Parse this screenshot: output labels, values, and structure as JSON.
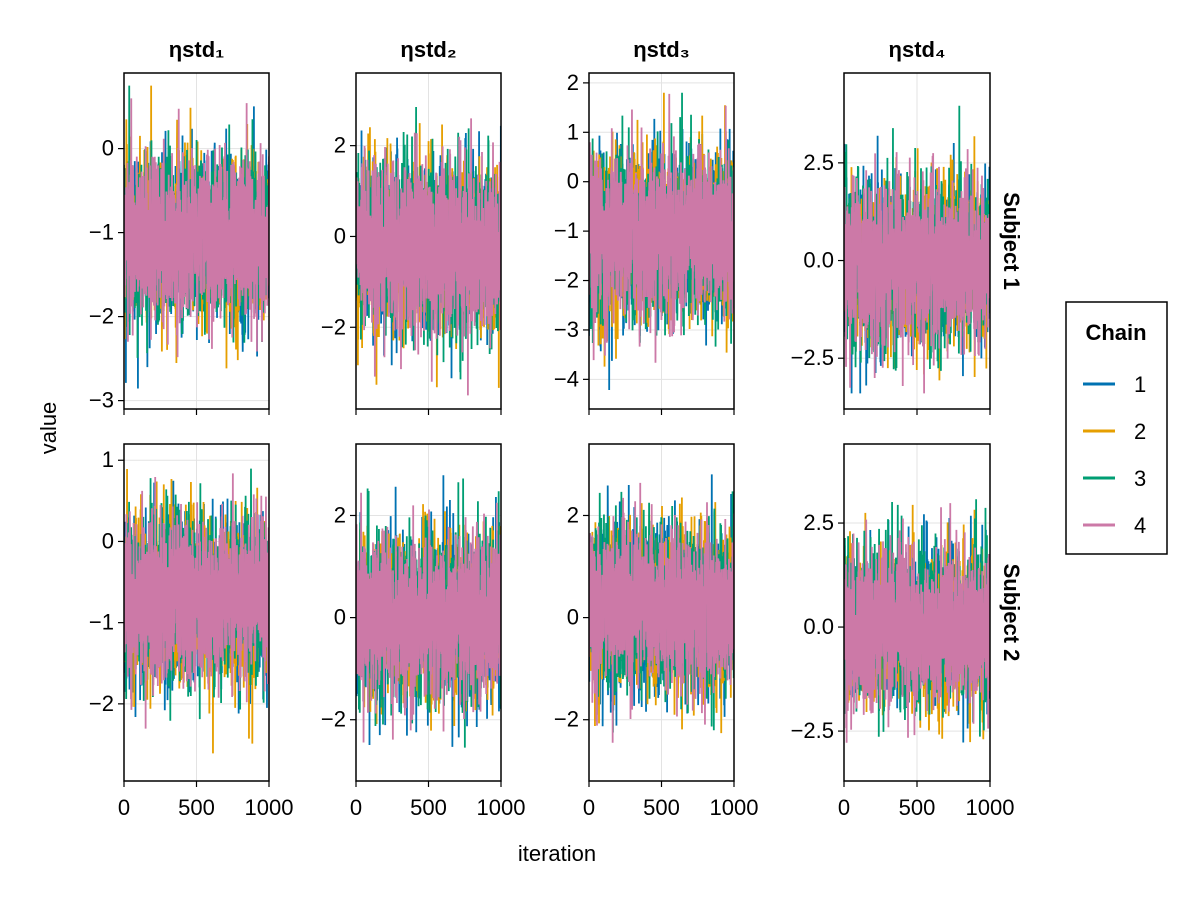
{
  "chart_data": {
    "type": "line",
    "xlabel": "iteration",
    "ylabel": "value",
    "columns": [
      "ηstd₁",
      "ηstd₂",
      "ηstd₃",
      "ηstd₄"
    ],
    "rows": [
      "Subject 1",
      "Subject 2"
    ],
    "xlim": [
      0,
      1000
    ],
    "xticks": [
      0,
      500,
      1000
    ],
    "grid": true,
    "legend": {
      "title": "Chain",
      "placement": "right",
      "entries": [
        "1",
        "2",
        "3",
        "4"
      ],
      "colors": [
        "#0072b2",
        "#e69f00",
        "#009e73",
        "#cc79a7"
      ]
    },
    "panels": [
      {
        "row": 0,
        "col": 0,
        "ylim": [
          -3.1,
          0.9
        ],
        "yticks": [
          0,
          -1,
          -2,
          -3
        ],
        "ytick_labels": [
          "0",
          "−1",
          "−2",
          "−3"
        ],
        "center": -1.05,
        "range": [
          -2.9,
          0.75
        ]
      },
      {
        "row": 0,
        "col": 1,
        "ylim": [
          -3.8,
          3.6
        ],
        "yticks": [
          2,
          0,
          -2
        ],
        "ytick_labels": [
          "2",
          "0",
          "−2"
        ],
        "center": -0.25,
        "range": [
          -3.5,
          3.35
        ]
      },
      {
        "row": 0,
        "col": 2,
        "ylim": [
          -4.6,
          2.2
        ],
        "yticks": [
          2,
          1,
          0,
          -1,
          -2,
          -3,
          -4
        ],
        "ytick_labels": [
          "2",
          "1",
          "0",
          "−1",
          "−2",
          "−3",
          "−4"
        ],
        "center": -1.05,
        "range": [
          -4.3,
          1.8
        ]
      },
      {
        "row": 0,
        "col": 3,
        "ylim": [
          -3.8,
          4.8
        ],
        "yticks": [
          2.5,
          0.0,
          -2.5
        ],
        "ytick_labels": [
          "2.5",
          "0.0",
          "−2.5"
        ],
        "center": -0.1,
        "range": [
          -3.4,
          4.3
        ]
      },
      {
        "row": 1,
        "col": 0,
        "ylim": [
          -2.95,
          1.2
        ],
        "yticks": [
          1,
          0,
          -1,
          -2
        ],
        "ytick_labels": [
          "1",
          "0",
          "−1",
          "−2"
        ],
        "center": -0.7,
        "range": [
          -2.7,
          1.0
        ]
      },
      {
        "row": 1,
        "col": 1,
        "ylim": [
          -3.2,
          3.4
        ],
        "yticks": [
          2,
          0,
          -2
        ],
        "ytick_labels": [
          "2",
          "0",
          "−2"
        ],
        "center": 0.0,
        "range": [
          -2.9,
          2.9
        ]
      },
      {
        "row": 1,
        "col": 2,
        "ylim": [
          -3.2,
          3.4
        ],
        "yticks": [
          2,
          0,
          -2
        ],
        "ytick_labels": [
          "2",
          "0",
          "−2"
        ],
        "center": 0.2,
        "range": [
          -2.8,
          3.2
        ]
      },
      {
        "row": 1,
        "col": 3,
        "ylim": [
          -3.7,
          4.4
        ],
        "yticks": [
          2.5,
          0.0,
          -2.5
        ],
        "ytick_labels": [
          "2.5",
          "0.0",
          "−2.5"
        ],
        "center": 0.0,
        "range": [
          -3.3,
          3.8
        ]
      }
    ]
  }
}
